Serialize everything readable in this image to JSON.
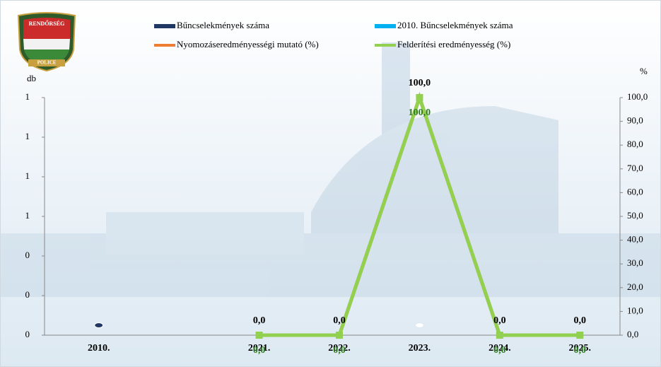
{
  "logo": {
    "top": "RENDŐRSÉG",
    "bottom": "POLICE"
  },
  "chart_data": {
    "type": "combo",
    "y_label": "db",
    "y2_label": "%",
    "categories": [
      "2010.",
      null,
      "2021.",
      "2022.",
      "2023.",
      "2024.",
      "2025."
    ],
    "ylim": [
      0,
      1.2
    ],
    "yticks": [
      0,
      {
        "value": 0.2,
        "label": "0"
      },
      {
        "value": 0.4,
        "label": "0"
      },
      {
        "value": 0.6,
        "label": "1"
      },
      {
        "value": 0.8,
        "label": "1"
      },
      1,
      {
        "value": 1.2,
        "label": "1"
      }
    ],
    "y2lim": [
      0,
      100
    ],
    "y2ticks": [
      {
        "value": 0,
        "label": "0,0"
      },
      {
        "value": 10,
        "label": "10,0"
      },
      {
        "value": 20,
        "label": "20,0"
      },
      {
        "value": 30,
        "label": "30,0"
      },
      {
        "value": 40,
        "label": "40,0"
      },
      {
        "value": 50,
        "label": "50,0"
      },
      {
        "value": 60,
        "label": "60,0"
      },
      {
        "value": 70,
        "label": "70,0"
      },
      {
        "value": 80,
        "label": "80,0"
      },
      {
        "value": 90,
        "label": "90,0"
      },
      {
        "value": 100,
        "label": "100,0"
      }
    ],
    "series": [
      {
        "name": "Bűncselekmények száma",
        "type": "bar",
        "color": "#1f3864",
        "values": [
          0,
          null,
          null,
          null,
          null,
          null,
          null
        ]
      },
      {
        "name": "2010. Bűncselekmények száma",
        "type": "bar",
        "color": "#00b0f0",
        "values": [
          null,
          null,
          null,
          null,
          0,
          null,
          null
        ]
      },
      {
        "name": "Nyomozáseredményességi mutató (%)",
        "type": "line",
        "axis": "y2",
        "color": "#ed7d31",
        "label_color": "#000000",
        "values": [
          null,
          null,
          0,
          0,
          100,
          0,
          0
        ],
        "value_labels": [
          null,
          null,
          "0,0",
          "0,0",
          "100,0",
          "0,0",
          "0,0"
        ]
      },
      {
        "name": "Felderítési eredményesség (%)",
        "type": "line",
        "axis": "y2",
        "color": "#92d050",
        "label_color": "#2e7d1e",
        "values": [
          null,
          null,
          0,
          0,
          100,
          0,
          0
        ],
        "value_labels": [
          null,
          null,
          "0,0",
          "0,0",
          "100,0",
          "0,0",
          "0,0"
        ]
      }
    ]
  }
}
